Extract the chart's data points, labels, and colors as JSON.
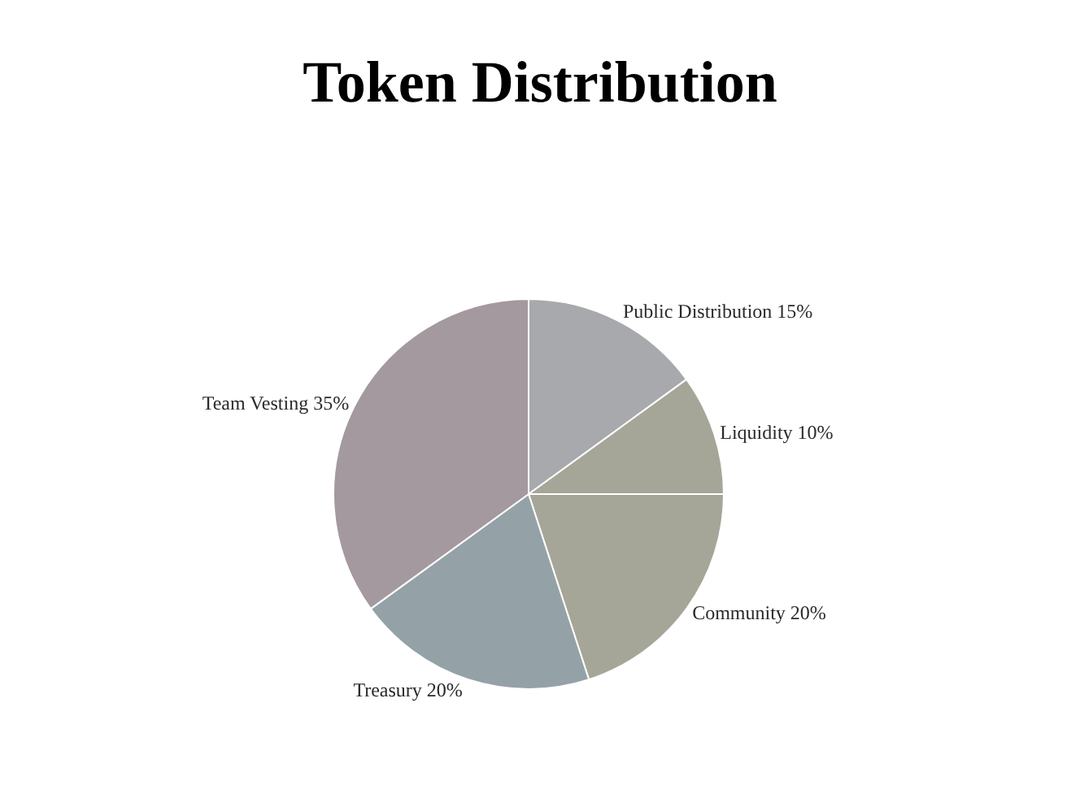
{
  "chart_data": {
    "type": "pie",
    "title": "Token Distribution",
    "categories": [
      "Public Distribution",
      "Liquidity",
      "Community",
      "Treasury",
      "Team Vesting"
    ],
    "values": [
      15,
      10,
      20,
      20,
      35
    ],
    "value_labels": [
      "15%",
      "10%",
      "20%",
      "20%",
      "35%"
    ],
    "colors": [
      "#a8a9ac",
      "#a6a698",
      "#a6a698",
      "#94a2a8",
      "#a4999f"
    ]
  }
}
